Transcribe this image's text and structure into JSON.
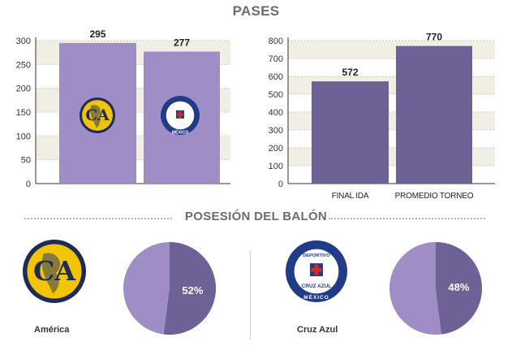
{
  "titles": {
    "passes": "PASES",
    "possession": "POSESIÓN DEL BALÓN"
  },
  "colors": {
    "light_purple": "#9f8dc6",
    "dark_purple": "#6e6196",
    "grid": "#f1eee3",
    "america_yellow": "#f2c500",
    "america_navy": "#1c2b5a",
    "cruz_azul_blue": "#1f3b8a",
    "cruz_azul_red": "#d52b1e"
  },
  "teams": {
    "america": {
      "name": "América",
      "logo_text": "CA",
      "logo_icon": "club-america-crest-icon"
    },
    "cruz_azul": {
      "name": "Cruz Azul",
      "logo_top": "DEPORTIVO",
      "logo_mid": "CRUZ AZUL",
      "logo_bottom": "MÉXICO",
      "logo_icon": "cruz-azul-crest-icon"
    }
  },
  "chart_data": [
    {
      "type": "bar",
      "title": "PASES",
      "categories": [
        "América",
        "Cruz Azul"
      ],
      "values": [
        295,
        277
      ],
      "data_labels": [
        "295",
        "277"
      ],
      "ylim": [
        0,
        300
      ],
      "yticks": [
        0,
        50,
        100,
        150,
        200,
        250,
        300
      ],
      "grid": true
    },
    {
      "type": "bar",
      "categories": [
        "FINAL IDA",
        "PROMEDIO TORNEO"
      ],
      "values": [
        572,
        770
      ],
      "data_labels": [
        "572",
        "770"
      ],
      "ylim": [
        0,
        800
      ],
      "yticks": [
        0,
        100,
        200,
        300,
        400,
        500,
        600,
        700,
        800
      ],
      "grid": true
    },
    {
      "type": "pie",
      "title": "POSESIÓN DEL BALÓN",
      "team": "América",
      "values": [
        52,
        48
      ],
      "label": "52%"
    },
    {
      "type": "pie",
      "team": "Cruz Azul",
      "values": [
        48,
        52
      ],
      "label": "48%"
    }
  ]
}
